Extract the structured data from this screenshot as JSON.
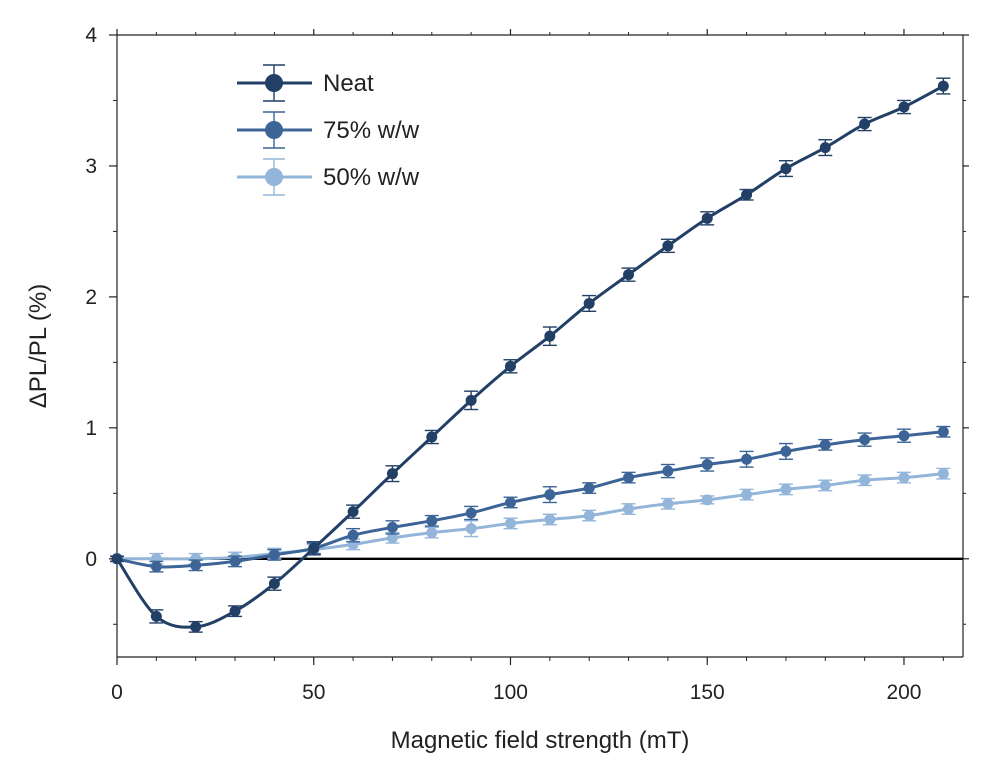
{
  "chart_data": {
    "type": "line",
    "title": "",
    "xlabel": "Magnetic field strength (mT)",
    "ylabel": "ΔPL/PL (%)",
    "xlim": [
      0,
      215
    ],
    "ylim": [
      -0.75,
      4
    ],
    "xticks": [
      0,
      50,
      100,
      150,
      200
    ],
    "yticks": [
      0,
      1,
      2,
      3,
      4
    ],
    "grid": false,
    "zero_line": true,
    "legend_position": "top-left",
    "x": [
      0,
      10,
      20,
      30,
      40,
      50,
      60,
      70,
      80,
      90,
      100,
      110,
      120,
      130,
      140,
      150,
      160,
      170,
      180,
      190,
      200,
      210
    ],
    "series": [
      {
        "name": "Neat",
        "color": "#223f66",
        "values": [
          0,
          -0.44,
          -0.52,
          -0.4,
          -0.19,
          0.08,
          0.36,
          0.65,
          0.93,
          1.21,
          1.47,
          1.7,
          1.95,
          2.17,
          2.39,
          2.6,
          2.78,
          2.98,
          3.14,
          3.32,
          3.45,
          3.61
        ],
        "errors": [
          0.02,
          0.05,
          0.04,
          0.04,
          0.05,
          0.05,
          0.05,
          0.06,
          0.05,
          0.07,
          0.05,
          0.07,
          0.06,
          0.05,
          0.05,
          0.05,
          0.04,
          0.06,
          0.06,
          0.05,
          0.05,
          0.06
        ]
      },
      {
        "name": "75% w/w",
        "color": "#3c6496",
        "values": [
          0,
          -0.06,
          -0.05,
          -0.02,
          0.03,
          0.08,
          0.18,
          0.24,
          0.29,
          0.35,
          0.43,
          0.49,
          0.54,
          0.62,
          0.67,
          0.72,
          0.76,
          0.82,
          0.87,
          0.91,
          0.94,
          0.97
        ],
        "errors": [
          0.02,
          0.04,
          0.04,
          0.04,
          0.04,
          0.04,
          0.05,
          0.05,
          0.04,
          0.05,
          0.04,
          0.06,
          0.04,
          0.04,
          0.05,
          0.05,
          0.06,
          0.06,
          0.04,
          0.05,
          0.05,
          0.04
        ]
      },
      {
        "name": "50% w/w",
        "color": "#93b5d9",
        "values": [
          0,
          0.0,
          0.0,
          0.01,
          0.04,
          0.07,
          0.11,
          0.16,
          0.2,
          0.23,
          0.27,
          0.3,
          0.33,
          0.38,
          0.42,
          0.45,
          0.49,
          0.53,
          0.56,
          0.6,
          0.62,
          0.65
        ],
        "errors": [
          0.02,
          0.04,
          0.04,
          0.04,
          0.04,
          0.04,
          0.04,
          0.04,
          0.04,
          0.06,
          0.04,
          0.04,
          0.04,
          0.04,
          0.04,
          0.03,
          0.04,
          0.04,
          0.04,
          0.04,
          0.04,
          0.04
        ]
      }
    ]
  }
}
